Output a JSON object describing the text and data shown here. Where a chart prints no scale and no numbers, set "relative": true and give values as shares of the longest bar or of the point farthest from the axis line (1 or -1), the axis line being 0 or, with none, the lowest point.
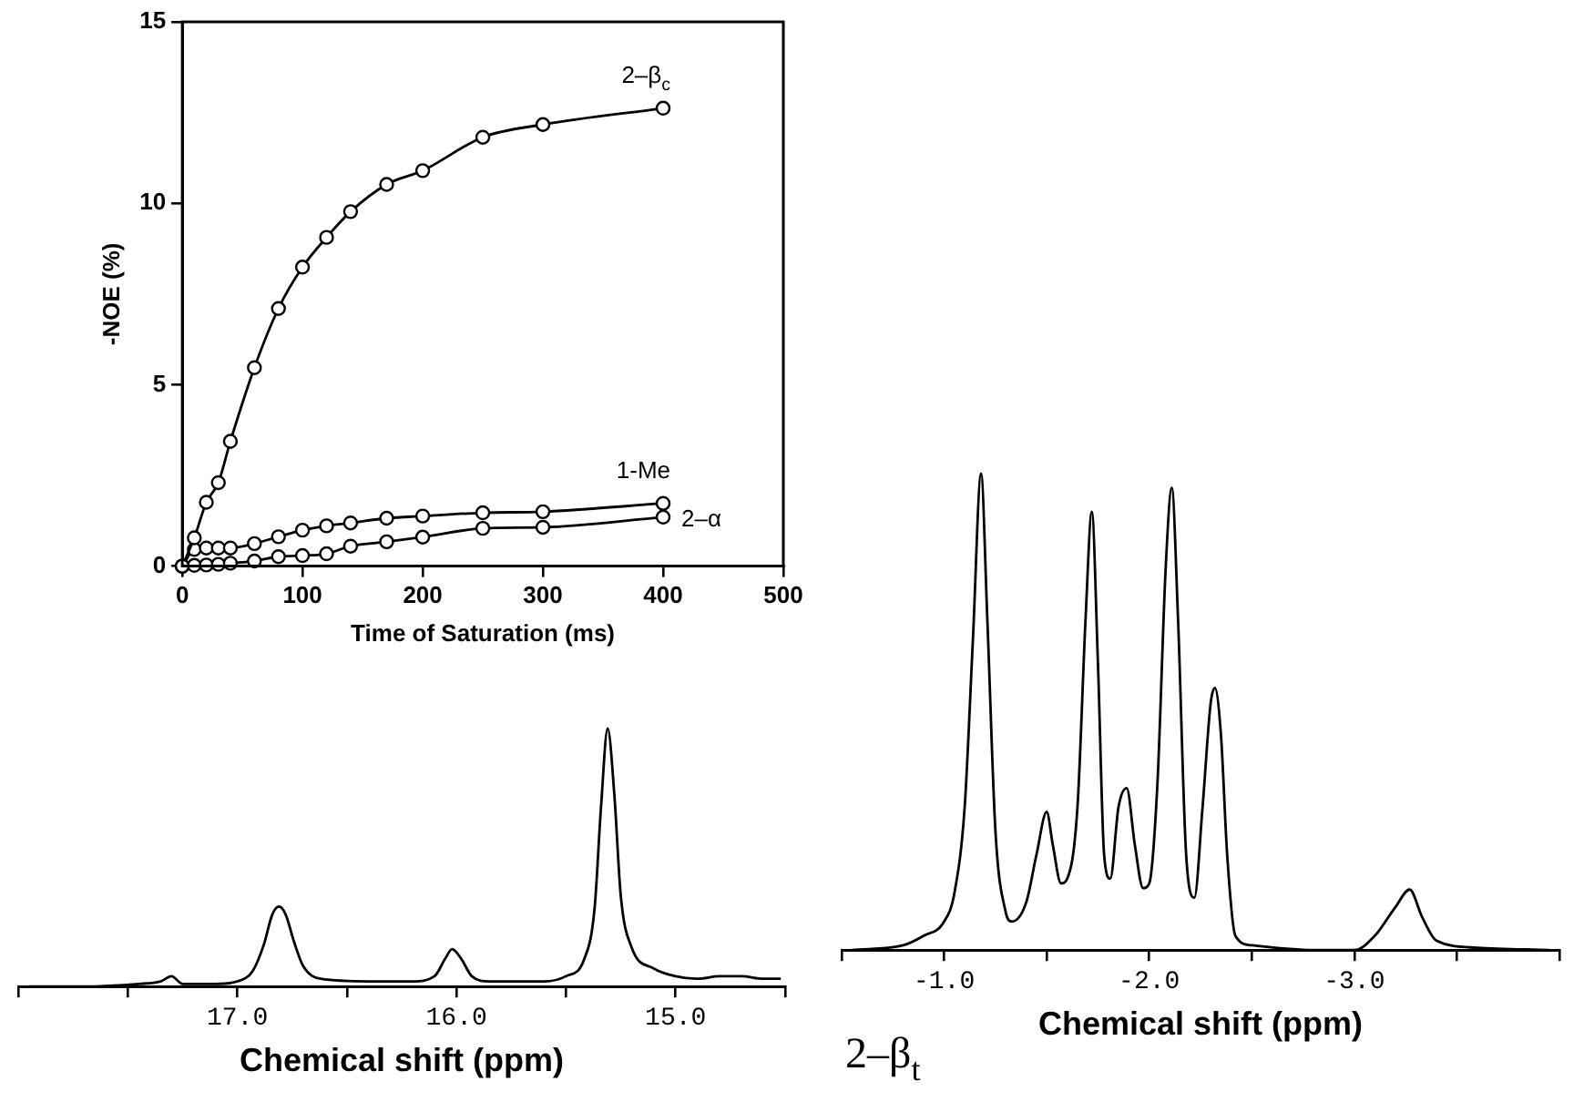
{
  "chart_data": [
    {
      "type": "line",
      "xlabel": "Time of Saturation (ms)",
      "ylabel": "-NOE (%)",
      "marker": "circle",
      "legend": false,
      "grid": false,
      "x": [
        0,
        10,
        20,
        30,
        40,
        60,
        80,
        100,
        120,
        140,
        170,
        200,
        250,
        300,
        400
      ],
      "xlim": [
        0,
        500
      ],
      "xticks": [
        0,
        100,
        200,
        300,
        400,
        500
      ],
      "ylim": [
        0,
        15
      ],
      "yticks": [
        0,
        5,
        10,
        15
      ],
      "series": [
        {
          "name": "2–β$_{c}$",
          "color": "#000000",
          "values": [
            0,
            0.78,
            1.76,
            2.3,
            3.44,
            5.47,
            7.1,
            8.24,
            9.06,
            9.77,
            10.52,
            10.9,
            11.82,
            12.17,
            12.62
          ]
        },
        {
          "name": "1-Me",
          "color": "#000000",
          "values": [
            0,
            0.46,
            0.5,
            0.5,
            0.5,
            0.62,
            0.81,
            0.99,
            1.11,
            1.19,
            1.32,
            1.38,
            1.47,
            1.5,
            1.73
          ]
        },
        {
          "name": "2–α",
          "color": "#000000",
          "values": [
            0,
            0.02,
            0.03,
            0.05,
            0.08,
            0.14,
            0.26,
            0.29,
            0.34,
            0.55,
            0.67,
            0.8,
            1.04,
            1.07,
            1.35
          ]
        }
      ]
    },
    {
      "type": "line",
      "xlabel": "Chemical shift (ppm)",
      "relative": true,
      "legend": false,
      "grid": false,
      "xlim": [
        18.0,
        14.5
      ],
      "xticks": [
        {
          "value": 18.0,
          "label": null
        },
        {
          "value": 17.5,
          "label": null
        },
        {
          "value": 17.0,
          "label": "17.0"
        },
        {
          "value": 16.5,
          "label": null
        },
        {
          "value": 16.0,
          "label": "16.0"
        },
        {
          "value": 15.5,
          "label": null
        },
        {
          "value": 15.0,
          "label": "15.0"
        },
        {
          "value": 14.5,
          "label": null
        }
      ],
      "x": [
        17.95,
        17.7,
        17.45,
        17.35,
        17.3,
        17.25,
        17.1,
        17.0,
        16.93,
        16.88,
        16.84,
        16.81,
        16.78,
        16.74,
        16.7,
        16.62,
        16.4,
        16.2,
        16.1,
        16.05,
        16.02,
        15.98,
        15.93,
        15.85,
        15.6,
        15.5,
        15.42,
        15.37,
        15.34,
        15.31,
        15.28,
        15.25,
        15.2,
        15.1,
        15.0,
        14.9,
        14.8,
        14.7,
        14.6,
        14.52
      ],
      "series": [
        {
          "color": "#000000",
          "values": [
            0,
            0,
            0.01,
            0.02,
            0.04,
            0.01,
            0.01,
            0.02,
            0.06,
            0.16,
            0.28,
            0.31,
            0.28,
            0.17,
            0.08,
            0.03,
            0.02,
            0.02,
            0.04,
            0.11,
            0.145,
            0.11,
            0.04,
            0.02,
            0.02,
            0.04,
            0.1,
            0.3,
            0.7,
            1,
            0.75,
            0.35,
            0.15,
            0.07,
            0.04,
            0.03,
            0.04,
            0.04,
            0.03,
            0.03
          ]
        }
      ]
    },
    {
      "type": "line",
      "xlabel": "Chemical shift (ppm)",
      "relative": true,
      "legend": false,
      "grid": false,
      "annotations": [
        "2–β$_{t}$"
      ],
      "xlim": [
        -0.5,
        -4.0
      ],
      "xticks": [
        {
          "value": -0.5,
          "label": null
        },
        {
          "value": -1.0,
          "label": "-1.0"
        },
        {
          "value": -1.5,
          "label": null
        },
        {
          "value": -2.0,
          "label": "-2.0"
        },
        {
          "value": -2.5,
          "label": null
        },
        {
          "value": -3.0,
          "label": "-3.0"
        },
        {
          "value": -3.5,
          "label": null
        },
        {
          "value": -4.0,
          "label": null
        }
      ],
      "x": [
        -0.55,
        -0.8,
        -0.9,
        -1.0,
        -1.05,
        -1.1,
        -1.14,
        -1.18,
        -1.21,
        -1.25,
        -1.3,
        -1.33,
        -1.4,
        -1.45,
        -1.5,
        -1.53,
        -1.57,
        -1.6,
        -1.65,
        -1.69,
        -1.72,
        -1.75,
        -1.78,
        -1.81,
        -1.85,
        -1.89,
        -1.93,
        -1.97,
        -2.0,
        -2.04,
        -2.08,
        -2.11,
        -2.14,
        -2.18,
        -2.22,
        -2.26,
        -2.3,
        -2.32,
        -2.35,
        -2.38,
        -2.42,
        -2.5,
        -2.8,
        -3.0,
        -3.1,
        -3.2,
        -3.27,
        -3.33,
        -3.4,
        -3.6,
        -3.95
      ],
      "series": [
        {
          "color": "#000000",
          "values": [
            0,
            0.01,
            0.03,
            0.06,
            0.12,
            0.3,
            0.65,
            1,
            0.7,
            0.25,
            0.08,
            0.06,
            0.1,
            0.2,
            0.29,
            0.22,
            0.14,
            0.15,
            0.3,
            0.7,
            0.92,
            0.6,
            0.2,
            0.15,
            0.3,
            0.34,
            0.22,
            0.13,
            0.14,
            0.35,
            0.8,
            0.97,
            0.7,
            0.2,
            0.11,
            0.3,
            0.52,
            0.55,
            0.45,
            0.2,
            0.03,
            0.01,
            0,
            0,
            0.03,
            0.09,
            0.127,
            0.07,
            0.02,
            0.005,
            0
          ]
        }
      ]
    }
  ]
}
